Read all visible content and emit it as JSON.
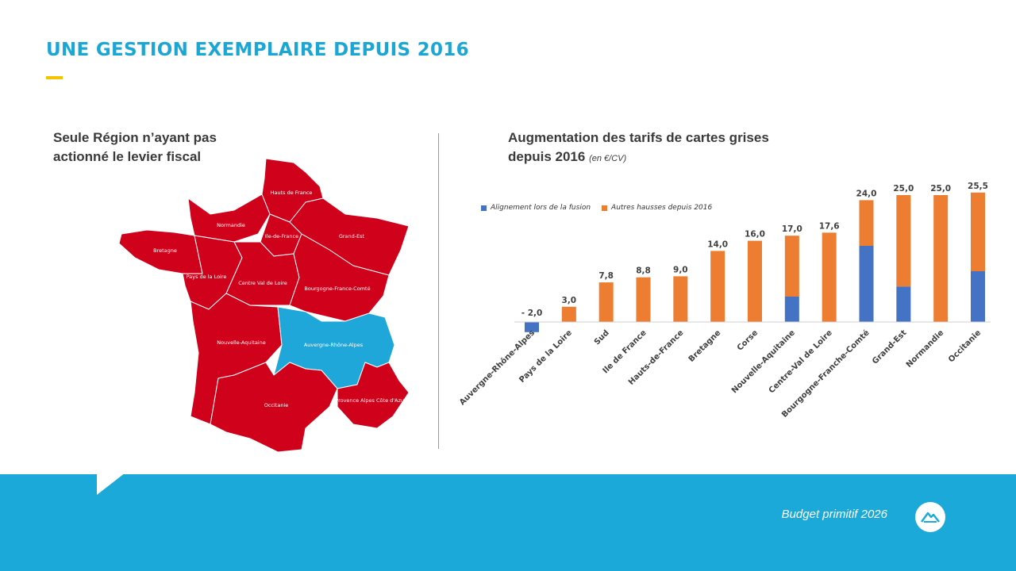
{
  "slide": {
    "title": "UNE GESTION EXEMPLAIRE DEPUIS 2016"
  },
  "left_panel": {
    "heading_line1": "Seule Région n’ayant pas",
    "heading_line2": "actionné le levier fiscal"
  },
  "map": {
    "regions": [
      {
        "id": "hauts-de-france",
        "label": "Hauts de France",
        "highlight": false
      },
      {
        "id": "normandie",
        "label": "Normandie",
        "highlight": false
      },
      {
        "id": "ile-de-france",
        "label": "Ile-de-France",
        "highlight": false
      },
      {
        "id": "grand-est",
        "label": "Grand-Est",
        "highlight": false
      },
      {
        "id": "bretagne",
        "label": "Bretagne",
        "highlight": false
      },
      {
        "id": "pays-de-la-loire",
        "label": "Pays de la Loire",
        "highlight": false
      },
      {
        "id": "centre-val-de-loire",
        "label": "Centre Val de Loire",
        "highlight": false
      },
      {
        "id": "bourgogne-franche-comte",
        "label": "Bourgogne-France-Comté",
        "highlight": false
      },
      {
        "id": "nouvelle-aquitaine",
        "label": "Nouvelle-Aquitaine",
        "highlight": false
      },
      {
        "id": "auvergne-rhone-alpes",
        "label": "Auvergne-Rhône-Alpes",
        "highlight": true
      },
      {
        "id": "occitanie",
        "label": "Occitanie",
        "highlight": false
      },
      {
        "id": "provence-alpes",
        "label": "Provence Alpes Côte d'Azur",
        "highlight": false
      }
    ],
    "colors": {
      "default": "#d0021b",
      "highlight": "#1ea7d8",
      "border": "#ffffff"
    }
  },
  "right_panel": {
    "heading_line1": "Augmentation des tarifs de cartes grises",
    "heading_line2": "depuis 2016",
    "unit": "(en €/CV)"
  },
  "chart_data": {
    "type": "bar",
    "stacked": true,
    "categories": [
      "Auvergne-Rhône-Alpes",
      "Pays de la Loire",
      "Sud",
      "Ile de France",
      "Hauts-de-France",
      "Bretagne",
      "Corse",
      "Nouvelle-Aquitaine",
      "Centre-Val de Loire",
      "Bourgogne-Franche-Comté",
      "Grand-Est",
      "Normandie",
      "Occitanie"
    ],
    "series": [
      {
        "name": "Alignement lors de la fusion",
        "color": "#4472c4",
        "values": [
          -2.0,
          0,
          0,
          0,
          0,
          0,
          0,
          5.0,
          0,
          15.0,
          7.0,
          0,
          10.0
        ]
      },
      {
        "name": "Autres hausses depuis 2016",
        "color": "#ed7d31",
        "values": [
          0,
          3.0,
          7.8,
          8.8,
          9.0,
          14.0,
          16.0,
          12.0,
          17.6,
          9.0,
          18.0,
          25.0,
          15.5
        ]
      }
    ],
    "totals": [
      -2.0,
      3.0,
      7.8,
      8.8,
      9.0,
      14.0,
      16.0,
      17.0,
      17.6,
      24.0,
      25.0,
      25.0,
      25.5
    ],
    "total_labels": [
      "- 2,0",
      "3,0",
      "7,8",
      "8,8",
      "9,0",
      "14,0",
      "16,0",
      "17,0",
      "17,6",
      "24,0",
      "25,0",
      "25,0",
      "25,5"
    ],
    "ylim": [
      -3,
      26
    ],
    "legend_position": "top-left",
    "grid": false
  },
  "footer": {
    "text": "Budget primitif 2026",
    "logo_icon": "region-logo-icon"
  }
}
